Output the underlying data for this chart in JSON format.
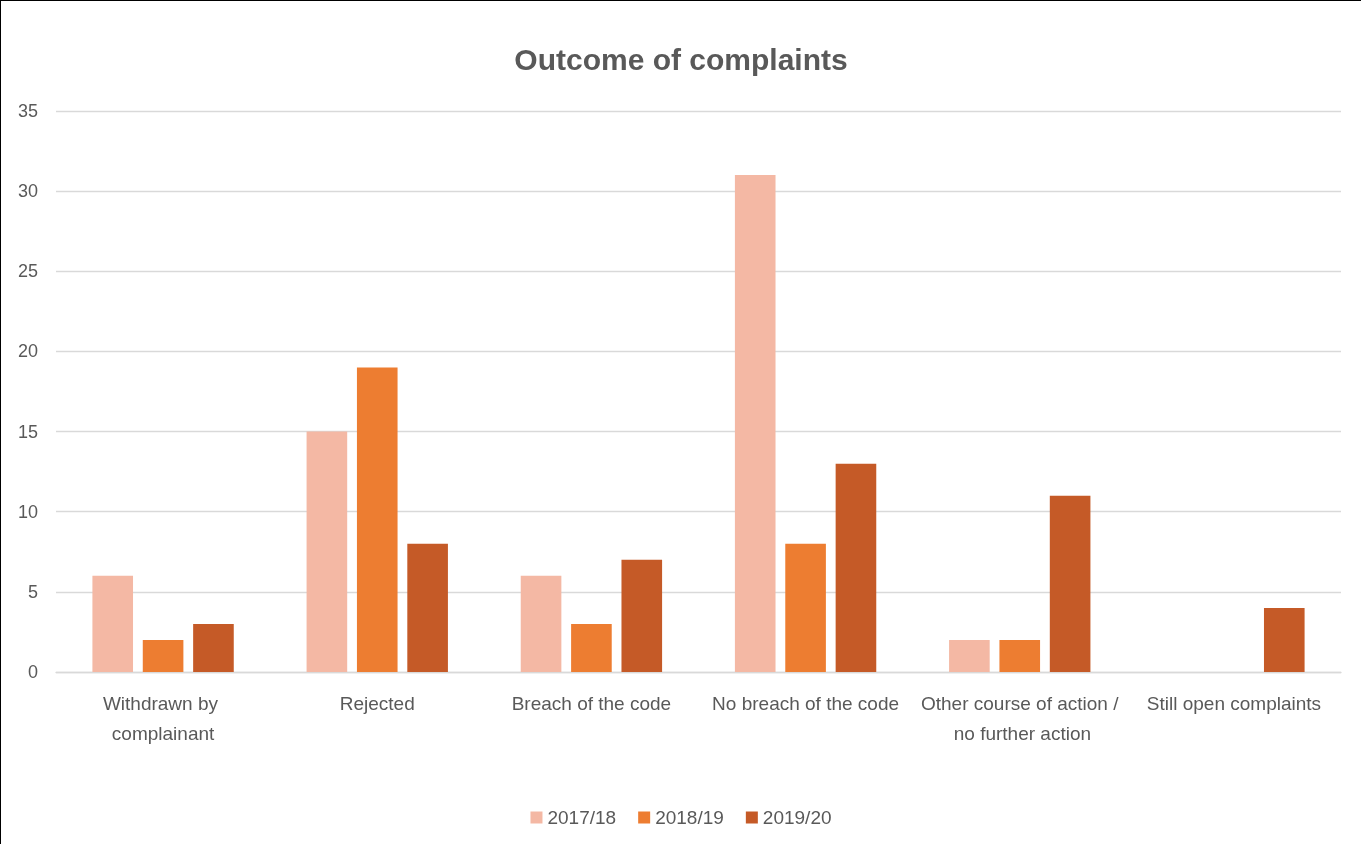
{
  "chart_data": {
    "type": "bar",
    "title": "Outcome of complaints",
    "categories": [
      "Withdrawn by complainant",
      "Rejected",
      "Breach of the code",
      "No breach of the code",
      "Other course of action / no further action",
      "Still open complaints"
    ],
    "series": [
      {
        "name": "2017/18",
        "color": "#f4b8a4",
        "values": [
          6,
          15,
          6,
          31,
          2,
          0
        ]
      },
      {
        "name": "2018/19",
        "color": "#ed7d31",
        "values": [
          2,
          19,
          3,
          8,
          2,
          0
        ]
      },
      {
        "name": "2019/20",
        "color": "#c55a27",
        "values": [
          3,
          8,
          7,
          13,
          11,
          4
        ]
      }
    ],
    "ylim": [
      0,
      35
    ],
    "yticks": [
      0,
      5,
      10,
      15,
      20,
      25,
      30,
      35
    ],
    "grid": "y",
    "legend": "bottom"
  }
}
